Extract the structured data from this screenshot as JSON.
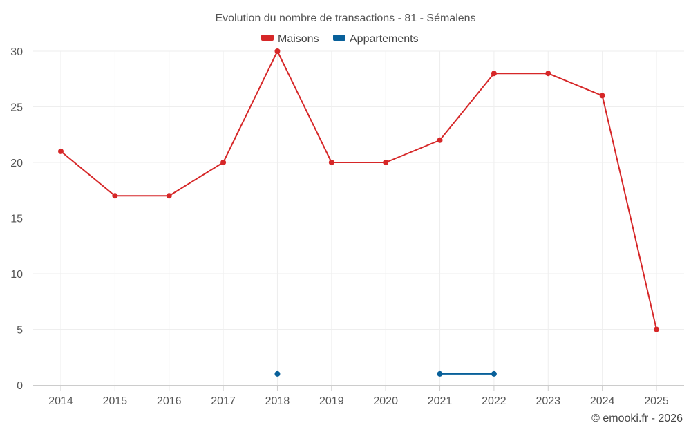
{
  "chart_data": {
    "type": "line",
    "title": "Evolution du nombre de transactions - 81 - Sémalens",
    "categories": [
      "2014",
      "2015",
      "2016",
      "2017",
      "2018",
      "2019",
      "2020",
      "2021",
      "2022",
      "2023",
      "2024",
      "2025"
    ],
    "series": [
      {
        "name": "Maisons",
        "color": "#d62728",
        "values": [
          21,
          17,
          17,
          20,
          30,
          20,
          20,
          22,
          28,
          28,
          26,
          5
        ]
      },
      {
        "name": "Appartements",
        "color": "#08609a",
        "values": [
          null,
          null,
          null,
          null,
          1,
          null,
          null,
          1,
          1,
          null,
          null,
          null
        ]
      }
    ],
    "ylim": [
      0,
      30
    ],
    "yticks": [
      0,
      5,
      10,
      15,
      20,
      25,
      30
    ],
    "grid": true,
    "legend_position": "top-center",
    "xlabel": "",
    "ylabel": ""
  },
  "credit": "© emooki.fr - 2026"
}
